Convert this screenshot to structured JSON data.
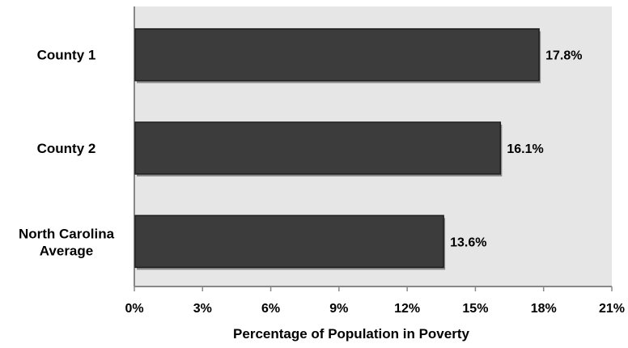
{
  "chart_data": {
    "type": "bar",
    "orientation": "horizontal",
    "categories": [
      "County 1",
      "County 2",
      "North Carolina Average"
    ],
    "values": [
      17.8,
      16.1,
      13.6
    ],
    "data_labels": [
      "17.8%",
      "16.1%",
      "13.6%"
    ],
    "xlabel": "Percentage of Population in Poverty",
    "ylabel": "",
    "title": "",
    "xlim": [
      0,
      21
    ],
    "xticks": [
      0,
      3,
      6,
      9,
      12,
      15,
      18,
      21
    ],
    "xtick_labels": [
      "0%",
      "3%",
      "6%",
      "9%",
      "12%",
      "15%",
      "18%",
      "21%"
    ],
    "grid": false,
    "legend": "none",
    "colors": {
      "bar": "#3c3c3c",
      "plot_background": "#e6e6e6",
      "axis": "#888888"
    }
  }
}
